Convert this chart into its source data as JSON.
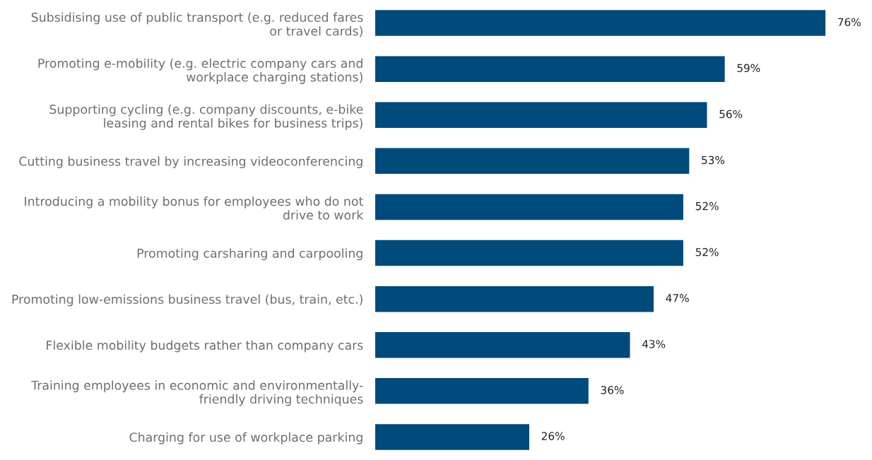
{
  "chart_data": {
    "type": "bar",
    "orientation": "horizontal",
    "categories": [
      "Subsidising use of public transport (e.g. reduced fares\nor travel cards)",
      "Promoting e-mobility (e.g. electric company cars and\nworkplace charging stations)",
      "Supporting cycling (e.g. company discounts, e-bike\nleasing and rental bikes for business trips)",
      "Cutting business travel by increasing videoconferencing",
      "Introducing a mobility bonus for employees who do not\ndrive to work",
      "Promoting carsharing and carpooling",
      "Promoting low-emissions business travel (bus, train, etc.)",
      "Flexible mobility budgets rather than company cars",
      "Training employees in economic and environmentally-\nfriendly driving techniques",
      "Charging for use of workplace parking"
    ],
    "values": [
      76,
      59,
      56,
      53,
      52,
      52,
      47,
      43,
      36,
      26
    ],
    "value_labels": [
      "76%",
      "59%",
      "56%",
      "53%",
      "52%",
      "52%",
      "47%",
      "43%",
      "36%",
      "26%"
    ],
    "color": "#004a7c",
    "grid": false,
    "legend": false,
    "tick_labels": "y"
  }
}
